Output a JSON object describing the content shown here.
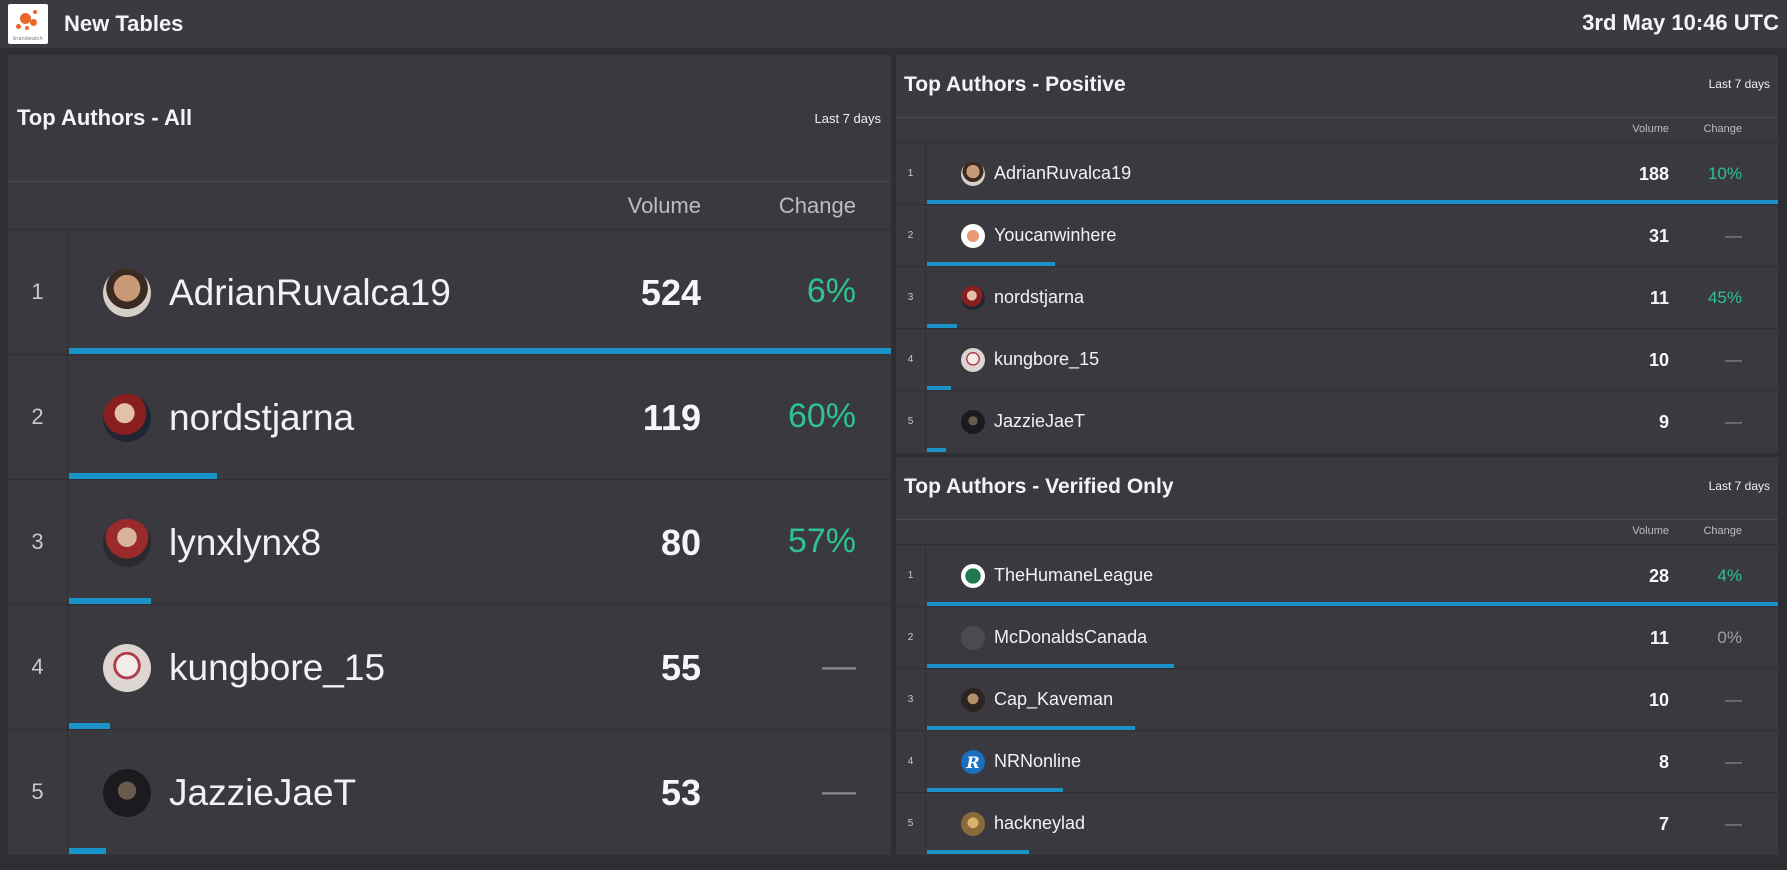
{
  "header": {
    "title": "New Tables",
    "timestamp": "3rd May 10:46 UTC",
    "logo_text": "brandwatch",
    "brand_color": "#e9672a"
  },
  "accent_color": "#1993c8",
  "positive_color": "#2ec38f",
  "panels": [
    {
      "id": "big",
      "title": "Top Authors - All",
      "period": "Last 7 days",
      "col_volume": "Volume",
      "col_change": "Change",
      "rows": [
        {
          "rank": "1",
          "name": "AdrianRuvalca19",
          "volume": 524,
          "change": "6%",
          "change_type": "pos",
          "bar_fraction": 1.0,
          "avatar": "avatar-adrian"
        },
        {
          "rank": "2",
          "name": "nordstjarna",
          "volume": 119,
          "change": "60%",
          "change_type": "pos",
          "bar_fraction": 0.18,
          "avatar": "avatar-nord"
        },
        {
          "rank": "3",
          "name": "lynxlynx8",
          "volume": 80,
          "change": "57%",
          "change_type": "pos",
          "bar_fraction": 0.1,
          "avatar": "avatar-lynx"
        },
        {
          "rank": "4",
          "name": "kungbore_15",
          "volume": 55,
          "change": "—",
          "change_type": "neutral",
          "bar_fraction": 0.05,
          "avatar": "avatar-kung"
        },
        {
          "rank": "5",
          "name": "JazzieJaeT",
          "volume": 53,
          "change": "—",
          "change_type": "neutral",
          "bar_fraction": 0.045,
          "avatar": "avatar-jazzie"
        }
      ]
    },
    {
      "id": "pos",
      "title": "Top Authors - Positive",
      "period": "Last 7 days",
      "col_volume": "Volume",
      "col_change": "Change",
      "rows": [
        {
          "rank": "1",
          "name": "AdrianRuvalca19",
          "volume": 188,
          "change": "10%",
          "change_type": "pos",
          "bar_fraction": 1.0,
          "avatar": "avatar-adrian"
        },
        {
          "rank": "2",
          "name": "Youcanwinhere",
          "volume": 31,
          "change": "—",
          "change_type": "neutral",
          "bar_fraction": 0.15,
          "avatar": "avatar-you"
        },
        {
          "rank": "3",
          "name": "nordstjarna",
          "volume": 11,
          "change": "45%",
          "change_type": "pos",
          "bar_fraction": 0.035,
          "avatar": "avatar-nord"
        },
        {
          "rank": "4",
          "name": "kungbore_15",
          "volume": 10,
          "change": "—",
          "change_type": "neutral",
          "bar_fraction": 0.028,
          "avatar": "avatar-kung"
        },
        {
          "rank": "5",
          "name": "JazzieJaeT",
          "volume": 9,
          "change": "—",
          "change_type": "neutral",
          "bar_fraction": 0.022,
          "avatar": "avatar-jazzie"
        }
      ]
    },
    {
      "id": "ver",
      "title": "Top Authors - Verified Only",
      "period": "Last 7 days",
      "col_volume": "Volume",
      "col_change": "Change",
      "rows": [
        {
          "rank": "1",
          "name": "TheHumaneLeague",
          "volume": 28,
          "change": "4%",
          "change_type": "pos",
          "bar_fraction": 1.0,
          "avatar": "avatar-humane"
        },
        {
          "rank": "2",
          "name": "McDonaldsCanada",
          "volume": 11,
          "change": "0%",
          "change_type": "zero",
          "bar_fraction": 0.29,
          "avatar": "avatar-mcd"
        },
        {
          "rank": "3",
          "name": "Cap_Kaveman",
          "volume": 10,
          "change": "—",
          "change_type": "neutral",
          "bar_fraction": 0.245,
          "avatar": "avatar-cap"
        },
        {
          "rank": "4",
          "name": "NRNonline",
          "volume": 8,
          "change": "—",
          "change_type": "neutral",
          "bar_fraction": 0.16,
          "avatar": "avatar-nrn"
        },
        {
          "rank": "5",
          "name": "hackneylad",
          "volume": 7,
          "change": "—",
          "change_type": "neutral",
          "bar_fraction": 0.12,
          "avatar": "avatar-hackney"
        }
      ]
    }
  ]
}
